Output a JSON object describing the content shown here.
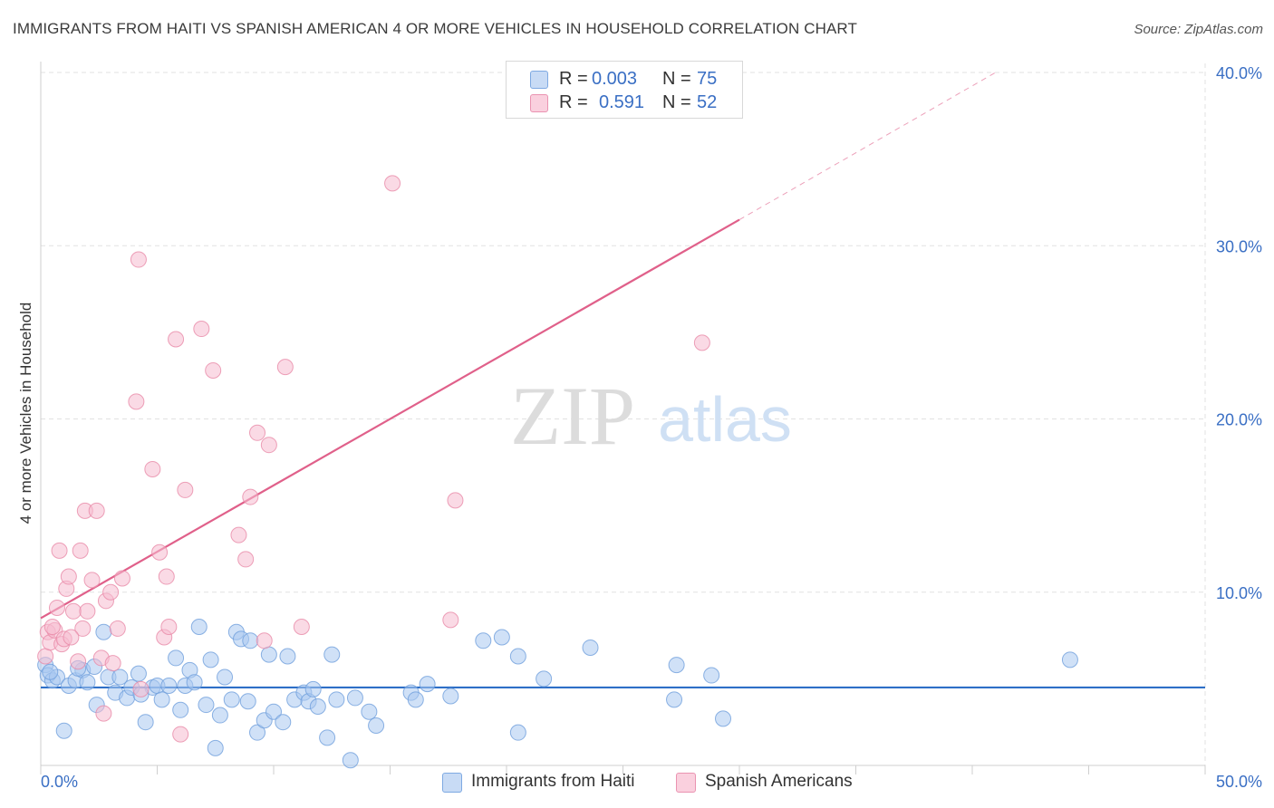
{
  "title": "IMMIGRANTS FROM HAITI VS SPANISH AMERICAN 4 OR MORE VEHICLES IN HOUSEHOLD CORRELATION CHART",
  "source": "Source: ZipAtlas.com",
  "watermark": {
    "zip": "ZIP",
    "atlas": "atlas"
  },
  "legend": {
    "rows": [
      {
        "r_label": "R = ",
        "r_value": "0.003",
        "n_label": "N = ",
        "n_value": "75",
        "color": "#a9c8f0"
      },
      {
        "r_label": "R = ",
        "r_value": "0.591",
        "n_label": "N = ",
        "n_value": "52",
        "color": "#f6bcd0"
      }
    ]
  },
  "bottom_legend": [
    {
      "label": "Immigrants from Haiti",
      "color": "#a9c8f0"
    },
    {
      "label": "Spanish Americans",
      "color": "#f6bcd0"
    }
  ],
  "chart_data": {
    "type": "scatter",
    "title": "IMMIGRANTS FROM HAITI VS SPANISH AMERICAN 4 OR MORE VEHICLES IN HOUSEHOLD CORRELATION CHART",
    "xlabel": "",
    "ylabel": "4 or more Vehicles in Household",
    "xlim": [
      0,
      50
    ],
    "ylim": [
      0,
      40
    ],
    "x_tick_labels": [
      "0.0%",
      "50.0%"
    ],
    "y_ticks": [
      10,
      20,
      30,
      40
    ],
    "y_tick_labels": [
      "10.0%",
      "20.0%",
      "30.0%",
      "40.0%"
    ],
    "grid": true,
    "legend_position": "top-center",
    "series": [
      {
        "name": "Immigrants from Haiti",
        "color": "#6f9fdc",
        "fill": "#a9c8f0",
        "r": 0.003,
        "n": 75,
        "trend": {
          "x": [
            0,
            50
          ],
          "y": [
            4.5,
            4.5
          ],
          "color": "#2e6fc7"
        },
        "points": [
          [
            0.2,
            5.8
          ],
          [
            0.3,
            5.2
          ],
          [
            0.5,
            4.9
          ],
          [
            0.7,
            5.1
          ],
          [
            1.0,
            2.0
          ],
          [
            1.2,
            4.6
          ],
          [
            1.5,
            4.9
          ],
          [
            1.8,
            5.5
          ],
          [
            2.0,
            4.8
          ],
          [
            2.3,
            5.7
          ],
          [
            2.4,
            3.5
          ],
          [
            2.7,
            7.7
          ],
          [
            2.9,
            5.1
          ],
          [
            3.2,
            4.2
          ],
          [
            3.4,
            5.1
          ],
          [
            3.7,
            3.9
          ],
          [
            3.9,
            4.5
          ],
          [
            4.2,
            5.3
          ],
          [
            4.5,
            2.5
          ],
          [
            4.8,
            4.5
          ],
          [
            5.0,
            4.6
          ],
          [
            5.2,
            3.8
          ],
          [
            5.5,
            4.6
          ],
          [
            5.8,
            6.2
          ],
          [
            6.0,
            3.2
          ],
          [
            6.2,
            4.6
          ],
          [
            6.4,
            5.5
          ],
          [
            6.6,
            4.8
          ],
          [
            6.8,
            8.0
          ],
          [
            7.1,
            3.5
          ],
          [
            7.3,
            6.1
          ],
          [
            7.5,
            1.0
          ],
          [
            7.7,
            2.9
          ],
          [
            7.9,
            5.1
          ],
          [
            8.2,
            3.8
          ],
          [
            8.4,
            7.7
          ],
          [
            8.6,
            7.3
          ],
          [
            8.9,
            3.7
          ],
          [
            9.0,
            7.2
          ],
          [
            9.3,
            1.9
          ],
          [
            9.6,
            2.6
          ],
          [
            9.8,
            6.4
          ],
          [
            10.0,
            3.1
          ],
          [
            10.4,
            2.5
          ],
          [
            10.6,
            6.3
          ],
          [
            10.9,
            3.8
          ],
          [
            11.3,
            4.2
          ],
          [
            11.5,
            3.7
          ],
          [
            11.7,
            4.4
          ],
          [
            11.9,
            3.4
          ],
          [
            12.3,
            1.6
          ],
          [
            12.5,
            6.4
          ],
          [
            12.7,
            3.8
          ],
          [
            13.3,
            0.3
          ],
          [
            13.5,
            3.9
          ],
          [
            14.1,
            3.1
          ],
          [
            14.4,
            2.3
          ],
          [
            15.9,
            4.2
          ],
          [
            16.1,
            3.8
          ],
          [
            16.6,
            4.7
          ],
          [
            17.6,
            4.0
          ],
          [
            19.0,
            7.2
          ],
          [
            19.8,
            7.4
          ],
          [
            20.5,
            1.9
          ],
          [
            20.5,
            6.3
          ],
          [
            21.6,
            5.0
          ],
          [
            23.6,
            6.8
          ],
          [
            27.2,
            3.8
          ],
          [
            27.3,
            5.8
          ],
          [
            28.8,
            5.2
          ],
          [
            29.3,
            2.7
          ],
          [
            44.2,
            6.1
          ],
          [
            0.4,
            5.4
          ],
          [
            1.6,
            5.6
          ],
          [
            4.3,
            4.1
          ]
        ]
      },
      {
        "name": "Spanish Americans",
        "color": "#e88aa8",
        "fill": "#f6bcd0",
        "r": 0.591,
        "n": 52,
        "trend": {
          "x": [
            0,
            30
          ],
          "y": [
            8.5,
            31.5
          ],
          "dash_to_x": 41,
          "dash_to_y": 40,
          "color": "#e0608a"
        },
        "points": [
          [
            0.2,
            6.3
          ],
          [
            0.3,
            7.7
          ],
          [
            0.4,
            7.1
          ],
          [
            0.6,
            7.8
          ],
          [
            0.7,
            9.1
          ],
          [
            0.8,
            12.4
          ],
          [
            0.9,
            7.0
          ],
          [
            1.0,
            7.3
          ],
          [
            1.1,
            10.2
          ],
          [
            1.2,
            10.9
          ],
          [
            1.4,
            8.9
          ],
          [
            1.6,
            6.0
          ],
          [
            1.7,
            12.4
          ],
          [
            1.8,
            7.9
          ],
          [
            1.9,
            14.7
          ],
          [
            2.0,
            8.9
          ],
          [
            2.2,
            10.7
          ],
          [
            2.4,
            14.7
          ],
          [
            2.6,
            6.2
          ],
          [
            2.7,
            3.0
          ],
          [
            2.8,
            9.5
          ],
          [
            3.0,
            10.0
          ],
          [
            3.1,
            5.9
          ],
          [
            3.3,
            7.9
          ],
          [
            3.5,
            10.8
          ],
          [
            4.1,
            21.0
          ],
          [
            4.2,
            29.2
          ],
          [
            4.3,
            4.4
          ],
          [
            4.8,
            17.1
          ],
          [
            5.1,
            12.3
          ],
          [
            5.3,
            7.4
          ],
          [
            5.4,
            10.9
          ],
          [
            5.5,
            8.0
          ],
          [
            5.8,
            24.6
          ],
          [
            6.0,
            1.8
          ],
          [
            6.2,
            15.9
          ],
          [
            6.9,
            25.2
          ],
          [
            7.4,
            22.8
          ],
          [
            8.5,
            13.3
          ],
          [
            8.8,
            11.9
          ],
          [
            9.0,
            15.5
          ],
          [
            9.3,
            19.2
          ],
          [
            9.6,
            7.2
          ],
          [
            9.8,
            18.5
          ],
          [
            10.5,
            23.0
          ],
          [
            11.2,
            8.0
          ],
          [
            15.1,
            33.6
          ],
          [
            17.6,
            8.4
          ],
          [
            17.8,
            15.3
          ],
          [
            28.4,
            24.4
          ],
          [
            0.5,
            8.0
          ],
          [
            1.3,
            7.4
          ]
        ]
      }
    ]
  }
}
